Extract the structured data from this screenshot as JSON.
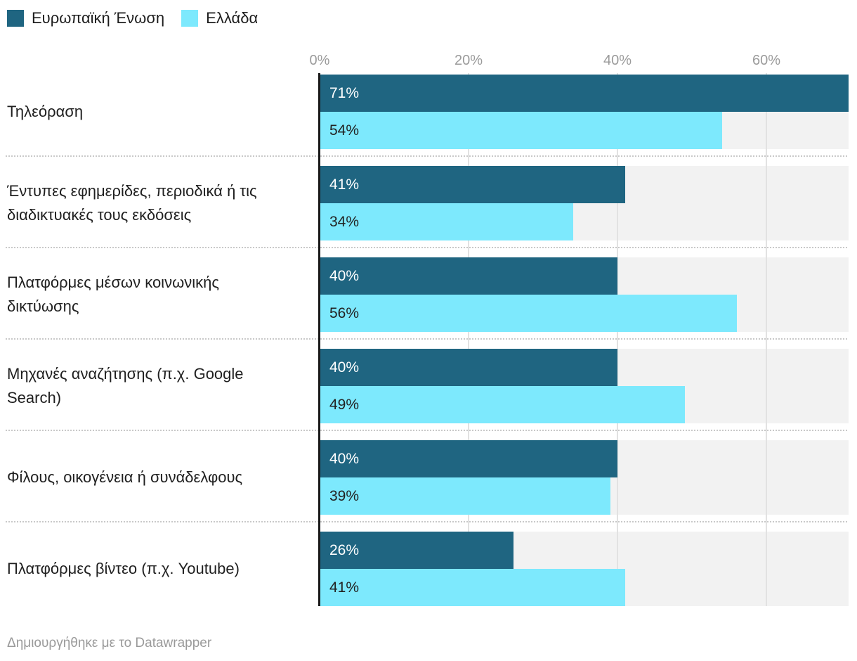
{
  "chart_data": {
    "type": "bar",
    "orientation": "horizontal",
    "categories": [
      "Τηλεόραση",
      "Έντυπες εφημερίδες, περιοδικά ή τις διαδικτυακές τους εκδόσεις",
      "Πλατφόρμες μέσων κοινωνικής δικτύωσης",
      "Μηχανές αναζήτησης (π.χ. Google Search)",
      "Φίλους, οικογένεια ή συνάδελφους",
      "Πλατφόρμες βίντεο (π.χ. Youtube)"
    ],
    "category_lines": [
      [
        "Τηλεόραση"
      ],
      [
        "Έντυπες εφημερίδες, περιοδικά ή τις",
        "διαδικτυακές τους εκδόσεις"
      ],
      [
        "Πλατφόρμες μέσων κοινωνικής",
        "δικτύωσης"
      ],
      [
        "Μηχανές αναζήτησης (π.χ. Google",
        "Search)"
      ],
      [
        "Φίλους, οικογένεια ή συνάδελφους"
      ],
      [
        "Πλατφόρμες βίντεο (π.χ. Youtube)"
      ]
    ],
    "series": [
      {
        "name": "Ευρωπαϊκή Ένωση",
        "color": "#1f6581",
        "values": [
          71,
          41,
          40,
          40,
          40,
          26
        ],
        "labels": [
          "71%",
          "41%",
          "40%",
          "40%",
          "40%",
          "26%"
        ]
      },
      {
        "name": "Ελλάδα",
        "color": "#7de9fd",
        "values": [
          54,
          34,
          56,
          49,
          39,
          41
        ],
        "labels": [
          "54%",
          "34%",
          "56%",
          "49%",
          "39%",
          "41%"
        ]
      }
    ],
    "xlim": [
      0,
      71
    ],
    "axis_ticks": [
      "0%",
      "20%",
      "40%",
      "60%"
    ],
    "axis_tick_values": [
      0,
      20,
      40,
      60
    ],
    "grid": "vertical-on",
    "legend_position": "top-left",
    "value_suffix": "%"
  },
  "legend": {
    "items": [
      {
        "label": "Ευρωπαϊκή Ένωση",
        "color": "#1f6581"
      },
      {
        "label": "Ελλάδα",
        "color": "#7de9fd"
      }
    ]
  },
  "footer": {
    "prefix": "Δημιουργήθηκε με το ",
    "link_text": "Datawrapper"
  },
  "colors": {
    "bar_eu": "#1f6581",
    "bar_gr": "#7de9fd",
    "track": "#f2f2f2",
    "gridline": "#e2e2e2",
    "axis_line": "#1a1a1a",
    "tick_label": "#9b9b9b",
    "category_label": "#1f1f1f",
    "value_on_dark": "#ffffff",
    "value_on_light": "#222222",
    "separator": "#c9c9c9",
    "footer_text": "#9a9a9a",
    "background": "#ffffff"
  }
}
